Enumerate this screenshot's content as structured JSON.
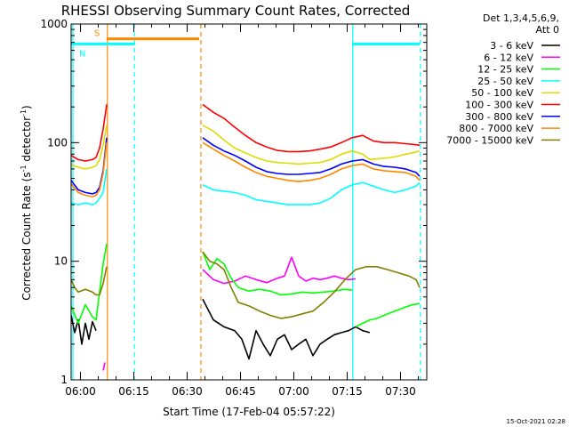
{
  "chart_data": {
    "type": "line",
    "title": "RHESSI Observing Summary Count Rates, Corrected",
    "xlabel": "Start Time (17-Feb-04 05:57:22)",
    "ylabel_main": "Corrected Count Rate (s",
    "ylabel_sup1": "-1",
    "ylabel_mid": " detector",
    "ylabel_sup2": "-1",
    "ylabel_end": ")",
    "x_unit": "minutes since 05:57:22",
    "xlim": [
      0,
      100
    ],
    "ylim": [
      1,
      1000
    ],
    "yscale": "log",
    "x_ticks": [
      {
        "label": "06:00",
        "x": 2.63
      },
      {
        "label": "06:15",
        "x": 17.63
      },
      {
        "label": "06:30",
        "x": 32.63
      },
      {
        "label": "06:45",
        "x": 47.63
      },
      {
        "label": "07:00",
        "x": 62.63
      },
      {
        "label": "07:15",
        "x": 77.63
      },
      {
        "label": "07:30",
        "x": 92.63
      }
    ],
    "y_ticks": [
      {
        "label": "1",
        "y": 1
      },
      {
        "label": "10",
        "y": 10
      },
      {
        "label": "100",
        "y": 100
      },
      {
        "label": "1000",
        "y": 1000
      }
    ],
    "legend_header": [
      "Det 1,3,4,5,6,9,",
      "Att 0"
    ],
    "legend_position": "right",
    "footer_stamp": "15-Oct-2021 02:28",
    "series": [
      {
        "name": "3 - 6 keV",
        "color": "#000000",
        "segments": [
          {
            "x": [
              0,
              1,
              2,
              3,
              4,
              5,
              6,
              7
            ],
            "y": [
              3.5,
              2.5,
              3.2,
              2.0,
              3.0,
              2.2,
              3.1,
              2.6
            ]
          },
          {
            "x": [
              37,
              40,
              43,
              46,
              48,
              50,
              52,
              54,
              56,
              58,
              60,
              62,
              64,
              66,
              68,
              70,
              72,
              74,
              76,
              78,
              80,
              82,
              84
            ],
            "y": [
              4.8,
              3.2,
              2.8,
              2.6,
              2.2,
              1.5,
              2.6,
              2.0,
              1.6,
              2.2,
              2.4,
              1.8,
              2.0,
              2.2,
              1.6,
              2.0,
              2.2,
              2.4,
              2.5,
              2.6,
              2.8,
              2.6,
              2.5
            ]
          }
        ]
      },
      {
        "name": "6 - 12 keV",
        "color": "#ff00ff",
        "segments": [
          {
            "x": [
              9,
              9.5
            ],
            "y": [
              1.2,
              1.4
            ]
          },
          {
            "x": [
              37,
              40,
              43,
              46,
              49,
              52,
              55,
              58,
              60,
              62,
              64,
              66,
              68,
              70,
              72,
              74,
              76,
              78,
              80
            ],
            "y": [
              8.5,
              7.0,
              6.5,
              6.8,
              7.5,
              7.0,
              6.6,
              7.2,
              7.5,
              10.8,
              7.5,
              6.8,
              7.2,
              7.0,
              7.2,
              7.5,
              7.2,
              7.0,
              7.1
            ]
          }
        ]
      },
      {
        "name": "12 - 25 keV",
        "color": "#00ff00",
        "segments": [
          {
            "x": [
              0,
              2,
              4,
              6,
              7,
              8,
              9,
              10
            ],
            "y": [
              4.2,
              3.0,
              4.3,
              3.4,
              3.2,
              5.5,
              9.5,
              14
            ]
          },
          {
            "x": [
              37,
              39,
              41,
              43,
              45,
              47,
              50,
              53,
              56,
              59,
              62,
              65,
              68,
              71,
              74,
              77,
              79
            ],
            "y": [
              12,
              8.5,
              10.5,
              9.5,
              7.2,
              6.0,
              5.6,
              5.8,
              5.6,
              5.2,
              5.3,
              5.5,
              5.4,
              5.5,
              5.6,
              5.8,
              5.7
            ]
          },
          {
            "x": [
              80,
              82,
              84,
              86,
              88,
              90,
              92,
              94,
              96,
              98
            ],
            "y": [
              2.8,
              3.0,
              3.2,
              3.3,
              3.5,
              3.7,
              3.9,
              4.1,
              4.3,
              4.4
            ]
          }
        ]
      },
      {
        "name": "25 - 50 keV",
        "color": "#00ffff",
        "segments": [
          {
            "x": [
              0,
              2,
              4,
              6,
              7,
              8,
              9,
              10
            ],
            "y": [
              31,
              30,
              31,
              30,
              31,
              34,
              38,
              60
            ]
          },
          {
            "x": [
              37,
              40,
              43,
              46,
              49,
              52,
              55,
              58,
              61,
              64,
              67,
              70,
              73,
              76,
              79,
              82,
              85,
              88,
              91,
              94,
              97,
              98
            ],
            "y": [
              44,
              40,
              39,
              38,
              36,
              33,
              32,
              31,
              30,
              30,
              30,
              31,
              34,
              40,
              44,
              46,
              43,
              40,
              38,
              40,
              43,
              46
            ]
          }
        ]
      },
      {
        "name": "50 - 100 keV",
        "color": "#dddd00",
        "segments": [
          {
            "x": [
              0,
              2,
              4,
              6,
              7,
              8,
              9,
              10
            ],
            "y": [
              65,
              62,
              60,
              62,
              64,
              72,
              95,
              140
            ]
          },
          {
            "x": [
              37,
              40,
              43,
              46,
              49,
              52,
              55,
              58,
              61,
              64,
              67,
              70,
              73,
              76,
              79,
              82,
              84,
              86,
              88,
              90,
              92,
              94,
              96,
              98
            ],
            "y": [
              140,
              125,
              105,
              90,
              82,
              75,
              70,
              68,
              67,
              66,
              67,
              68,
              72,
              80,
              85,
              80,
              72,
              73,
              74,
              75,
              77,
              80,
              82,
              85
            ]
          }
        ]
      },
      {
        "name": "100 - 300 keV",
        "color": "#ff0000",
        "segments": [
          {
            "x": [
              0,
              2,
              4,
              6,
              7,
              8,
              9,
              10
            ],
            "y": [
              78,
              72,
              70,
              72,
              75,
              90,
              130,
              210
            ]
          },
          {
            "x": [
              37,
              40,
              43,
              46,
              49,
              52,
              55,
              58,
              61,
              64,
              67,
              70,
              73,
              76,
              79,
              82,
              85,
              88,
              91,
              94,
              97,
              98
            ],
            "y": [
              210,
              180,
              160,
              135,
              115,
              100,
              92,
              86,
              84,
              84,
              85,
              88,
              92,
              100,
              110,
              115,
              103,
              100,
              100,
              98,
              96,
              95
            ]
          }
        ]
      },
      {
        "name": "300 - 800 keV",
        "color": "#0000ff",
        "segments": [
          {
            "x": [
              0,
              2,
              4,
              6,
              7,
              8,
              9,
              10
            ],
            "y": [
              48,
              40,
              38,
              37,
              38,
              42,
              58,
              110
            ]
          },
          {
            "x": [
              37,
              40,
              43,
              46,
              49,
              52,
              55,
              58,
              61,
              64,
              67,
              70,
              73,
              76,
              79,
              82,
              85,
              88,
              91,
              94,
              97,
              98
            ],
            "y": [
              110,
              95,
              85,
              78,
              70,
              62,
              57,
              55,
              54,
              54,
              55,
              56,
              60,
              66,
              70,
              72,
              66,
              63,
              62,
              60,
              56,
              52
            ]
          }
        ]
      },
      {
        "name": "800 - 7000 keV",
        "color": "#ff8800",
        "segments": [
          {
            "x": [
              0,
              2,
              4,
              6,
              7,
              8,
              9,
              10
            ],
            "y": [
              45,
              38,
              36,
              35,
              36,
              40,
              55,
              100
            ]
          },
          {
            "x": [
              37,
              40,
              43,
              46,
              49,
              52,
              55,
              58,
              61,
              64,
              67,
              70,
              73,
              76,
              79,
              82,
              85,
              88,
              91,
              94,
              97,
              98
            ],
            "y": [
              100,
              88,
              78,
              70,
              62,
              56,
              52,
              50,
              48,
              47,
              48,
              50,
              54,
              60,
              64,
              66,
              60,
              58,
              57,
              56,
              52,
              48
            ]
          }
        ]
      },
      {
        "name": "7000 - 15000 keV",
        "color": "#808000",
        "segments": [
          {
            "x": [
              0,
              1,
              2,
              4,
              6,
              7,
              8,
              9,
              10
            ],
            "y": [
              7.0,
              6.0,
              5.5,
              5.8,
              5.5,
              5.2,
              5.2,
              6.5,
              9.0
            ]
          },
          {
            "x": [
              37,
              39,
              41,
              43,
              45,
              47,
              50,
              53,
              56,
              59,
              62,
              65,
              68,
              71,
              74,
              77,
              80,
              83,
              86,
              89,
              92,
              95,
              97,
              98
            ],
            "y": [
              12,
              10,
              9.5,
              8.5,
              6.0,
              4.5,
              4.2,
              3.8,
              3.5,
              3.3,
              3.4,
              3.6,
              3.8,
              4.5,
              5.5,
              7.0,
              8.5,
              9.0,
              9.0,
              8.5,
              8.0,
              7.5,
              7.0,
              6.0
            ]
          }
        ]
      }
    ],
    "bars": [
      {
        "label": "S",
        "color": "#ff8800",
        "y": 750,
        "x": [
          10,
          36
        ]
      },
      {
        "label": "N",
        "color": "#00ffff",
        "y": 680,
        "x": [
          0,
          18
        ]
      },
      {
        "label": "",
        "color": "#00ffff",
        "y": 680,
        "x": [
          79,
          98
        ]
      }
    ],
    "vlines": [
      {
        "x": 0.5,
        "color": "#00ffff",
        "style": "solid"
      },
      {
        "x": 10.2,
        "color": "#ff8800",
        "style": "solid"
      },
      {
        "x": 17.8,
        "color": "#00ffff",
        "style": "dashed"
      },
      {
        "x": 36.5,
        "color": "#ff8800",
        "style": "dashed"
      },
      {
        "x": 79.2,
        "color": "#00ffff",
        "style": "solid"
      },
      {
        "x": 98.2,
        "color": "#00ffff",
        "style": "dashed"
      }
    ]
  }
}
